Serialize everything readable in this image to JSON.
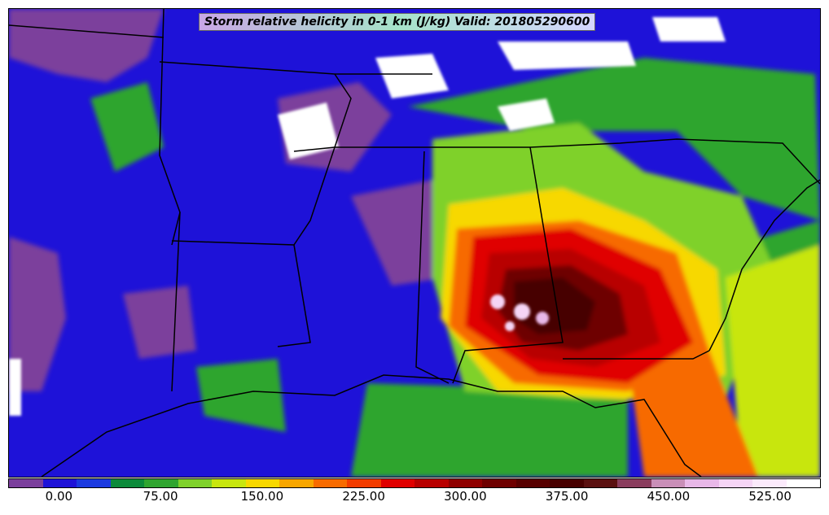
{
  "map": {
    "title": "Storm relative helicity in 0-1 km (J/kg) Valid: 201805290600",
    "variable": "Storm relative helicity in 0-1 km",
    "units": "J/kg",
    "valid_time": "201805290600",
    "region_shown": "Southeastern United States and Gulf of Mexico",
    "feature": "Concentrated high helicity (300-450+ J/kg) centered over southern Alabama / Florida panhandle"
  },
  "colorbar": {
    "colors": [
      "#7b3f9c",
      "#1e12d8",
      "#1b3ae0",
      "#0b8a3a",
      "#2fa52f",
      "#7fd12b",
      "#c8e60f",
      "#f7d800",
      "#f7a600",
      "#f76b00",
      "#f23c00",
      "#e00000",
      "#b80000",
      "#8f0000",
      "#6e0000",
      "#570000",
      "#470000",
      "#5a1010",
      "#8a3d5e",
      "#c98fb8",
      "#e8b8e8",
      "#f5d5f5",
      "#fbeafb",
      "#ffffff"
    ],
    "tick_labels": [
      "0.00",
      "75.00",
      "150.00",
      "225.00",
      "300.00",
      "375.00",
      "450.00",
      "525.00"
    ],
    "tick_values": [
      0,
      75,
      150,
      225,
      300,
      375,
      450,
      525
    ],
    "vmin": -37.5,
    "vmax": 562.5
  }
}
